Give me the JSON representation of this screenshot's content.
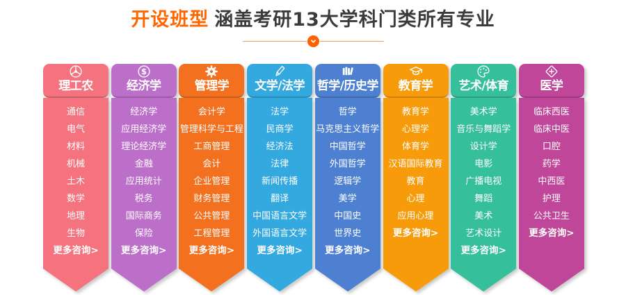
{
  "header": {
    "title_highlight": "开设班型",
    "title_rest": "涵盖考研13大学科门类所有专业",
    "highlight_color": "#ff6600",
    "text_color": "#3b3b3b",
    "divider_line_color": "#ff9a63",
    "divider_dot_color": "#ff6000",
    "divider_icon": "chevron-down-icon"
  },
  "columns": [
    {
      "name": "理工农",
      "icon": "wheel-icon",
      "color": "#F4737E",
      "items": [
        "通信",
        "电气",
        "材料",
        "机械",
        "土木",
        "数学",
        "地理",
        "生物"
      ],
      "more": "更多咨询>"
    },
    {
      "name": "经济学",
      "icon": "dollar-icon",
      "color": "#BC6FC9",
      "items": [
        "经济学",
        "应用经济学",
        "理论经济学",
        "金融",
        "应用统计",
        "税务",
        "国际商务",
        "保险"
      ],
      "more": "更多咨询>"
    },
    {
      "name": "管理学",
      "icon": "gear-icon",
      "color": "#F3701F",
      "items": [
        "会计学",
        "管理科学与工程",
        "工商管理",
        "会计",
        "企业管理",
        "财务管理",
        "公共管理",
        "工程管理"
      ],
      "more": "更多咨询>"
    },
    {
      "name": "文学/法学",
      "icon": "pencil-icon",
      "color": "#33A9E0",
      "items": [
        "法学",
        "民商学",
        "经济法",
        "法律",
        "新闻传播",
        "翻译",
        "中国语言文学",
        "外国语言文学"
      ],
      "more": "更多咨询>"
    },
    {
      "name": "哲学/历史学",
      "icon": "books-icon",
      "color": "#4E80D2",
      "items": [
        "哲学",
        "马克思主义哲学",
        "中国哲学",
        "外国哲学",
        "逻辑学",
        "美学",
        "中国史",
        "世界史"
      ],
      "more": "更多咨询>"
    },
    {
      "name": "教育学",
      "icon": "graduation-cap-icon",
      "color": "#F79B0B",
      "items": [
        "教育学",
        "心理学",
        "体育学",
        "汉语国际教育",
        "教育",
        "心理",
        "应用心理"
      ],
      "more": "更多咨询>"
    },
    {
      "name": "艺术/体育",
      "icon": "palette-icon",
      "color": "#36BF9B",
      "items": [
        "美术学",
        "音乐与舞蹈学",
        "设计学",
        "电影",
        "广播电视",
        "舞蹈",
        "美术",
        "艺术设计"
      ],
      "more": "更多咨询>"
    },
    {
      "name": "医学",
      "icon": "medical-cross-icon",
      "color": "#C04699",
      "items": [
        "临床西医",
        "临床中医",
        "口腔",
        "药学",
        "中西医",
        "护理",
        "公共卫生"
      ],
      "more": "更多咨询>"
    }
  ]
}
